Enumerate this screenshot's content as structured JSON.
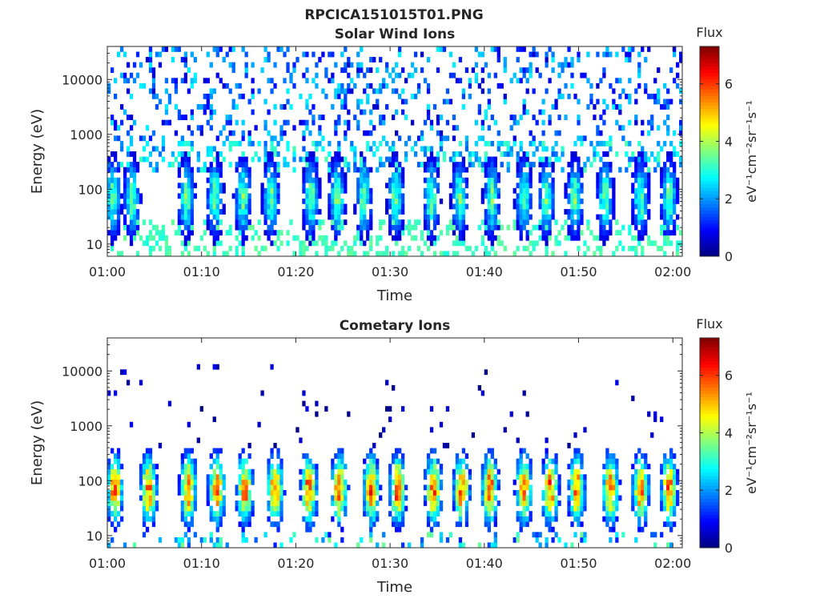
{
  "figure": {
    "title": "RPCICA151015T01.PNG"
  },
  "colormap": "jet",
  "chart_data": [
    {
      "type": "heatmap",
      "title": "Solar Wind Ions",
      "xlabel": "Time",
      "ylabel": "Energy (eV)",
      "x_ticks": [
        "01:00",
        "01:10",
        "01:20",
        "01:30",
        "01:40",
        "01:50",
        "02:00"
      ],
      "xlim": [
        "01:00",
        "02:01"
      ],
      "y_scale": "log",
      "y_ticks": [
        10,
        100,
        1000,
        10000
      ],
      "ylim": [
        6,
        40000
      ],
      "colorbar": {
        "label": "Flux",
        "units": "eV⁻¹cm⁻²sr⁻¹s⁻¹",
        "ticks": [
          0,
          2,
          4,
          6
        ],
        "range": [
          0,
          7.3
        ]
      },
      "burst_minutes": [
        0.6,
        2.6,
        8.4,
        11.4,
        14.4,
        17.4,
        21.6,
        24.4,
        27.2,
        30.6,
        34.4,
        37.4,
        40.8,
        44.2,
        46.6,
        49.6,
        52.8,
        56.6,
        59.6
      ],
      "burst_peak_energy_eV": 70,
      "burst_peak_flux": 3.6,
      "background_flux": 1.5
    },
    {
      "type": "heatmap",
      "title": "Cometary Ions",
      "xlabel": "Time",
      "ylabel": "Energy (eV)",
      "x_ticks": [
        "01:00",
        "01:10",
        "01:20",
        "01:30",
        "01:40",
        "01:50",
        "02:00"
      ],
      "xlim": [
        "01:00",
        "02:01"
      ],
      "y_scale": "log",
      "y_ticks": [
        10,
        100,
        1000,
        10000
      ],
      "ylim": [
        6,
        40000
      ],
      "colorbar": {
        "label": "Flux",
        "units": "eV⁻¹cm⁻²sr⁻¹s⁻¹",
        "ticks": [
          0,
          2,
          4,
          6
        ],
        "range": [
          0,
          7.3
        ]
      },
      "burst_minutes": [
        0.8,
        4.4,
        8.6,
        11.6,
        14.6,
        17.8,
        21.4,
        24.6,
        28.0,
        30.8,
        34.6,
        37.6,
        40.6,
        44.2,
        47.0,
        49.8,
        53.4,
        56.6,
        59.6
      ],
      "burst_peak_energy_eV": 70,
      "burst_peak_flux": 6.0,
      "background_flux": 0.4
    }
  ]
}
